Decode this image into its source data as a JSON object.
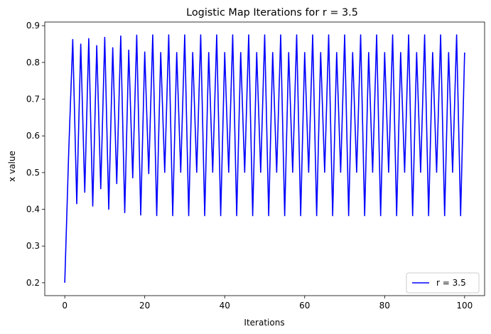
{
  "chart_data": {
    "type": "line",
    "title": "Logistic Map Iterations for r = 3.5",
    "xlabel": "Iterations",
    "ylabel": "x value",
    "xlim": [
      -5,
      105
    ],
    "ylim": [
      0.165,
      0.91
    ],
    "xticks": [
      0,
      20,
      40,
      60,
      80,
      100
    ],
    "yticks": [
      0.2,
      0.3,
      0.4,
      0.5,
      0.6,
      0.7,
      0.8,
      0.9
    ],
    "grid": false,
    "legend_position": "lower-right",
    "r": 3.5,
    "x0": 0.2,
    "iterations": 100,
    "series": [
      {
        "name": "r = 3.5",
        "color": "#0000ff",
        "x": [],
        "values": []
      }
    ]
  }
}
